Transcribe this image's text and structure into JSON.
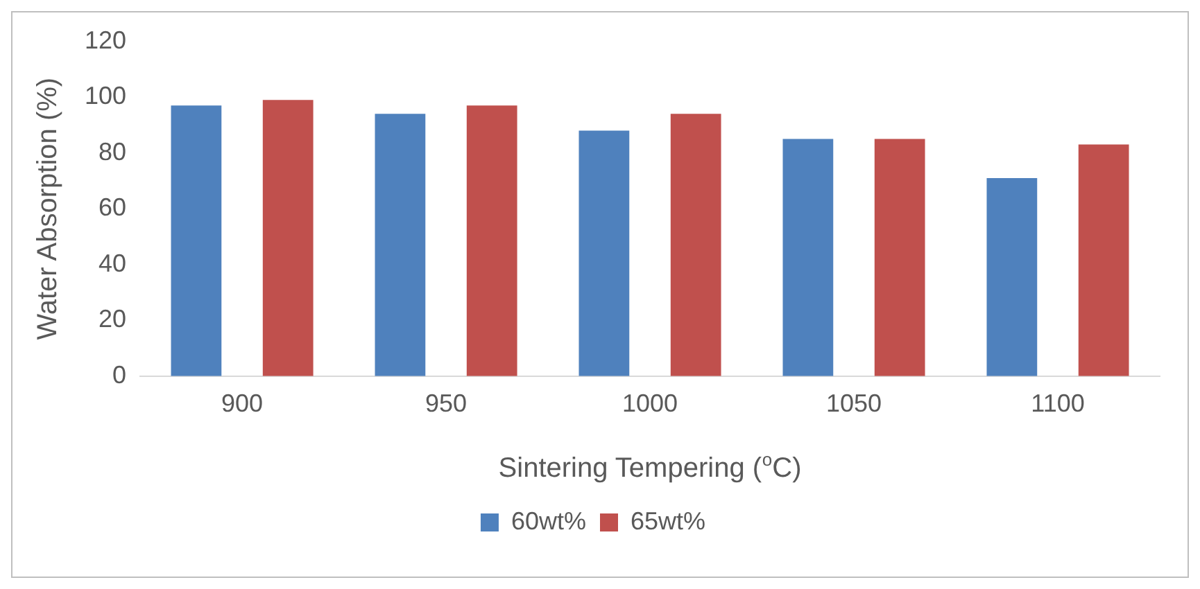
{
  "chart_data": {
    "type": "bar",
    "xlabel": "Sintering Tempering ($^{o}$C)",
    "ylabel": "Water Absorption (%)",
    "categories": [
      "900",
      "950",
      "1000",
      "1050",
      "1100"
    ],
    "series": [
      {
        "name": "60wt%",
        "color": "#4f81bd",
        "values": [
          97,
          94,
          88,
          85,
          71
        ]
      },
      {
        "name": "65wt%",
        "color": "#c0504d",
        "values": [
          99,
          97,
          94,
          85,
          83
        ]
      }
    ],
    "ylim": [
      0,
      120
    ],
    "yticks": [
      0,
      20,
      40,
      60,
      80,
      100,
      120
    ],
    "grid": false,
    "legend": "bottom"
  }
}
